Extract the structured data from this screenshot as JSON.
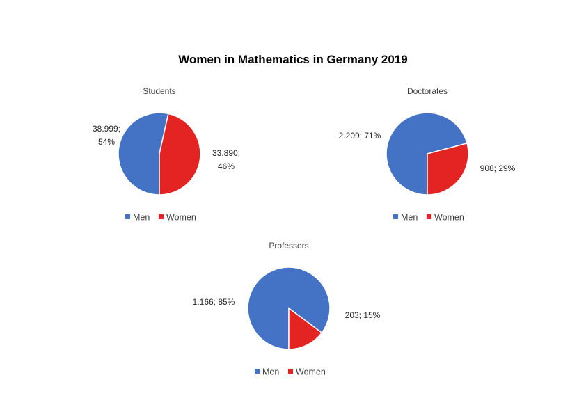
{
  "title": "Women in Mathematics in Germany 2019",
  "colors": {
    "men": "#4472C4",
    "women": "#E42422"
  },
  "chart_data": [
    {
      "type": "pie",
      "title": "Students",
      "categories": [
        "Men",
        "Women"
      ],
      "values": [
        38999,
        33890
      ],
      "data_labels": [
        [
          "38.999;",
          "54%"
        ],
        [
          "33.890;",
          "46%"
        ]
      ],
      "legend": [
        "Men",
        "Women"
      ],
      "legend_position": "bottom"
    },
    {
      "type": "pie",
      "title": "Doctorates",
      "categories": [
        "Men",
        "Women"
      ],
      "values": [
        2209,
        908
      ],
      "data_labels": [
        [
          "2.209; 71%"
        ],
        [
          "908; 29%"
        ]
      ],
      "legend": [
        "Men",
        "Women"
      ],
      "legend_position": "bottom"
    },
    {
      "type": "pie",
      "title": "Professors",
      "categories": [
        "Men",
        "Women"
      ],
      "values": [
        1166,
        203
      ],
      "data_labels": [
        [
          "1.166; 85%"
        ],
        [
          "203; 15%"
        ]
      ],
      "legend": [
        "Men",
        "Women"
      ],
      "legend_position": "bottom"
    }
  ]
}
